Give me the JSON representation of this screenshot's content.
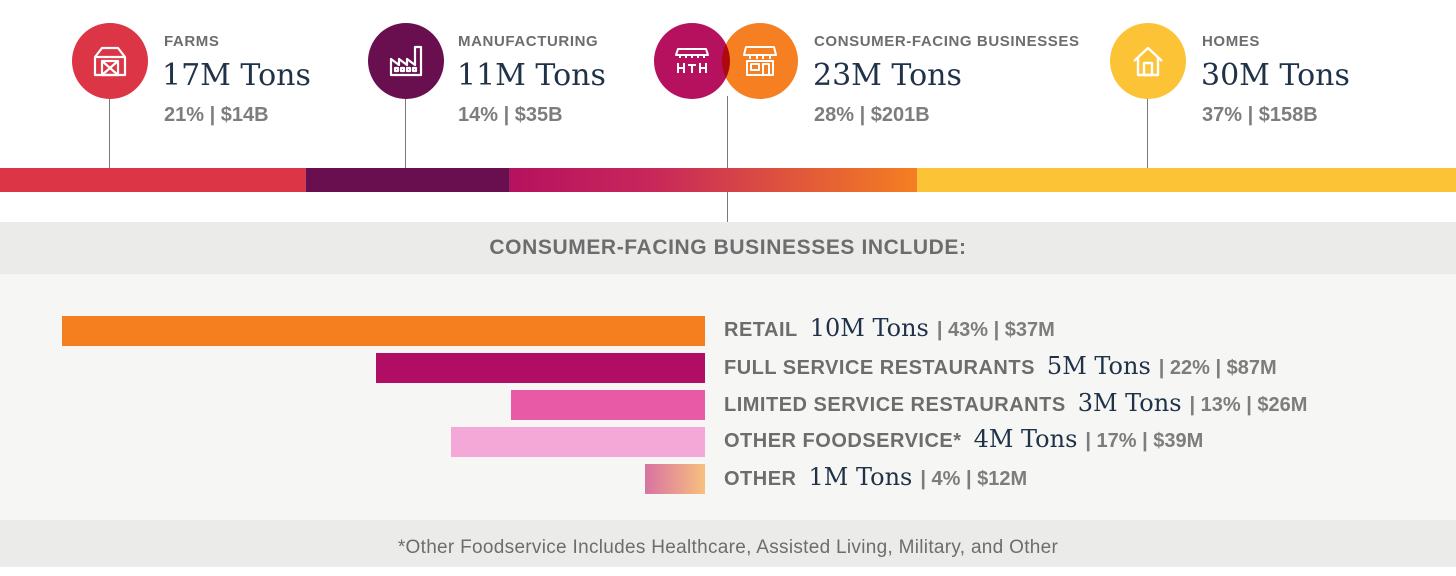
{
  "chart_data": [
    {
      "type": "bar",
      "orientation": "horizontal-stacked",
      "categories": [
        "FARMS",
        "MANUFACTURING",
        "CONSUMER-FACING BUSINESSES",
        "HOMES"
      ],
      "series": [
        {
          "values_tons_label": [
            "17M Tons",
            "11M Tons",
            "23M Tons",
            "30M Tons"
          ],
          "percent": [
            21,
            14,
            28,
            37
          ],
          "cost_label": [
            "$14B",
            "$35B",
            "$201B",
            "$158B"
          ]
        }
      ],
      "tick_labels": [
        "21% | $14B",
        "14% | $35B",
        "28% | $201B",
        "37% | $158B"
      ]
    },
    {
      "type": "bar",
      "orientation": "horizontal",
      "title": "CONSUMER-FACING BUSINESSES INCLUDE:",
      "categories": [
        "RETAIL",
        "FULL SERVICE RESTAURANTS",
        "LIMITED SERVICE RESTAURANTS",
        "OTHER FOODSERVICE*",
        "OTHER"
      ],
      "values_percent": [
        43,
        22,
        13,
        17,
        4
      ],
      "tons_labels": [
        "10M Tons",
        "5M Tons",
        "3M Tons",
        "4M Tons",
        "1M Tons"
      ],
      "meta_labels": [
        "| 43% | $37M",
        "| 22% | $87M",
        "| 13% | $26M",
        "| 17% | $39M",
        "| 4% | $12M"
      ]
    }
  ],
  "sectors": [
    {
      "label": "FARMS",
      "tons": "17M Tons",
      "meta": "21% | $14B",
      "color": "#dc3545",
      "icon": "barn-icon"
    },
    {
      "label": "MANUFACTURING",
      "tons": "11M Tons",
      "meta": "14% | $35B",
      "color": "#690f4f",
      "icon": "factory-icon"
    },
    {
      "label": "CONSUMER-FACING BUSINESSES",
      "tons": "23M Tons",
      "meta": "28% | $201B",
      "colors": [
        "#b5115f",
        "#f57f21"
      ],
      "icons": [
        "restaurant-icon",
        "storefront-icon"
      ]
    },
    {
      "label": "HOMES",
      "tons": "30M Tons",
      "meta": "37% | $158B",
      "color": "#fdc336",
      "icon": "house-icon"
    }
  ],
  "breakdown_colors": [
    "#f57f1f",
    "#b10d64",
    "#e85aa5",
    "#f4a8d8",
    "gradient #d873a2-#f8c07e"
  ],
  "footnote": "*Other Foodservice Includes Healthcare, Assisted Living, Military, and Other"
}
